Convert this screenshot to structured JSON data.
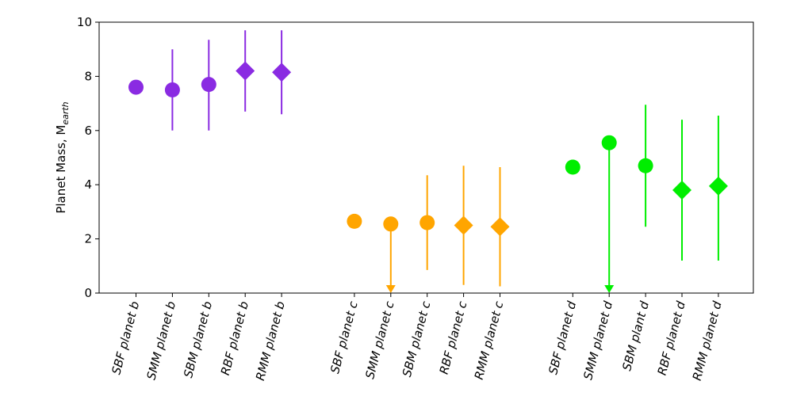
{
  "chart_data": {
    "type": "scatter",
    "title": "",
    "xlabel": "",
    "ylabel": "Planet Mass, M",
    "ylabel_subscript": "earth",
    "ylim": [
      0,
      10
    ],
    "yticks": [
      0,
      2,
      4,
      6,
      8,
      10
    ],
    "grid": false,
    "points": [
      {
        "label": "SBF planet b",
        "group": "b",
        "value": 7.6,
        "err_low": null,
        "err_high": null,
        "upper_limit": false,
        "marker": "circle",
        "color": "#8a2be2"
      },
      {
        "label": "SMM planet b",
        "group": "b",
        "value": 7.5,
        "err_low": 6.0,
        "err_high": 9.0,
        "upper_limit": false,
        "marker": "circle",
        "color": "#8a2be2"
      },
      {
        "label": "SBM planet b",
        "group": "b",
        "value": 7.7,
        "err_low": 6.0,
        "err_high": 9.35,
        "upper_limit": false,
        "marker": "circle",
        "color": "#8a2be2"
      },
      {
        "label": "RBF planet b",
        "group": "b",
        "value": 8.2,
        "err_low": 6.7,
        "err_high": 9.7,
        "upper_limit": false,
        "marker": "diamond",
        "color": "#8a2be2"
      },
      {
        "label": "RMM planet b",
        "group": "b",
        "value": 8.15,
        "err_low": 6.6,
        "err_high": 9.7,
        "upper_limit": false,
        "marker": "diamond",
        "color": "#8a2be2"
      },
      {
        "label": "SBF planet c",
        "group": "c",
        "value": 2.65,
        "err_low": null,
        "err_high": null,
        "upper_limit": false,
        "marker": "circle",
        "color": "#ffa500"
      },
      {
        "label": "SMM planet c",
        "group": "c",
        "value": 2.55,
        "err_low": 0.0,
        "err_high": null,
        "upper_limit": true,
        "marker": "circle",
        "color": "#ffa500"
      },
      {
        "label": "SBM planet c",
        "group": "c",
        "value": 2.6,
        "err_low": 0.85,
        "err_high": 4.35,
        "upper_limit": false,
        "marker": "circle",
        "color": "#ffa500"
      },
      {
        "label": "RBF planet c",
        "group": "c",
        "value": 2.5,
        "err_low": 0.3,
        "err_high": 4.7,
        "upper_limit": false,
        "marker": "diamond",
        "color": "#ffa500"
      },
      {
        "label": "RMM planet c",
        "group": "c",
        "value": 2.45,
        "err_low": 0.25,
        "err_high": 4.65,
        "upper_limit": false,
        "marker": "diamond",
        "color": "#ffa500"
      },
      {
        "label": "SBF planet d",
        "group": "d",
        "value": 4.65,
        "err_low": null,
        "err_high": null,
        "upper_limit": false,
        "marker": "circle",
        "color": "#00ee00"
      },
      {
        "label": "SMM planet d",
        "group": "d",
        "value": 5.55,
        "err_low": 0.0,
        "err_high": null,
        "upper_limit": true,
        "marker": "circle",
        "color": "#00ee00"
      },
      {
        "label": "SBM plant d",
        "group": "d",
        "value": 4.7,
        "err_low": 2.45,
        "err_high": 6.95,
        "upper_limit": false,
        "marker": "circle",
        "color": "#00ee00"
      },
      {
        "label": "RBF planet d",
        "group": "d",
        "value": 3.8,
        "err_low": 1.2,
        "err_high": 6.4,
        "upper_limit": false,
        "marker": "diamond",
        "color": "#00ee00"
      },
      {
        "label": "RMM planet d",
        "group": "d",
        "value": 3.95,
        "err_low": 1.2,
        "err_high": 6.55,
        "upper_limit": false,
        "marker": "diamond",
        "color": "#00ee00"
      }
    ]
  }
}
